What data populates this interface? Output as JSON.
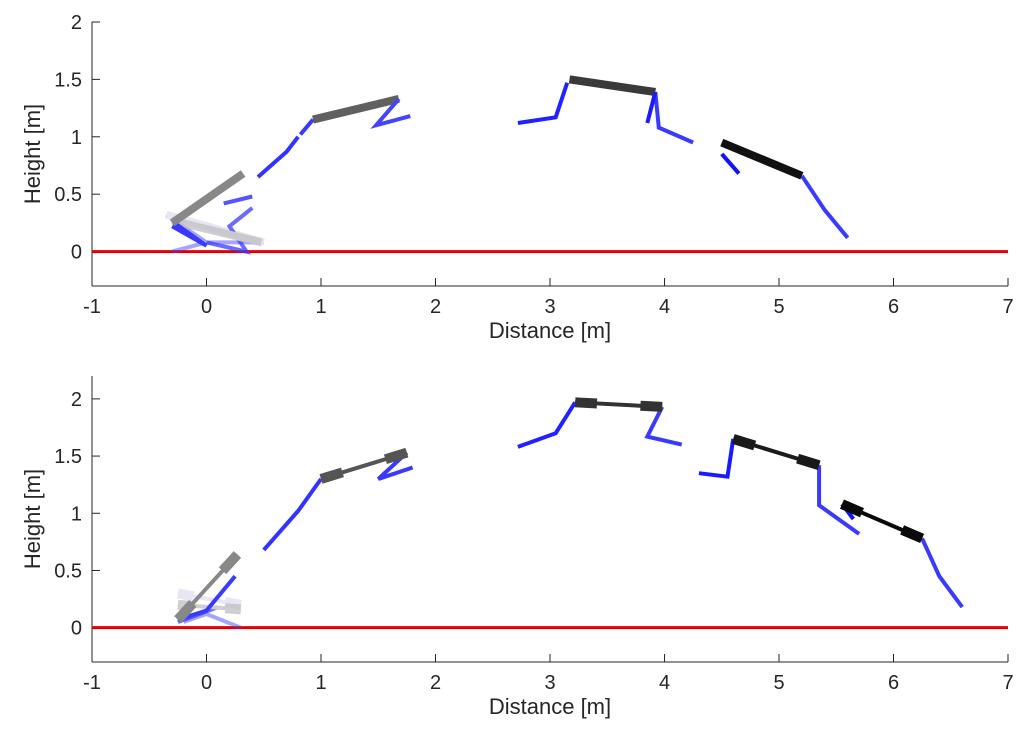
{
  "chart_data": [
    {
      "type": "line",
      "title": "",
      "xlabel": "Distance [m]",
      "ylabel": "Height [m]",
      "xlim": [
        -1,
        7
      ],
      "ylim": [
        -0.3,
        2
      ],
      "xticks": [
        "-1",
        "0",
        "1",
        "2",
        "3",
        "4",
        "5",
        "6",
        "7"
      ],
      "yticks": [
        "0",
        "0.5",
        "1",
        "1.5",
        "2"
      ],
      "ground": {
        "y": 0,
        "color": "#e00000"
      },
      "grid": false,
      "legend": "none",
      "frames": [
        {
          "tone": "#c8c8e8",
          "opacity": 0.45,
          "trunk": [
            [
              -0.35,
              0.32
            ],
            [
              0.5,
              0.08
            ]
          ],
          "legs": [
            [
              -0.35,
              0.32
            ],
            [
              0.0,
              0.08
            ],
            [
              -0.3,
              0.0
            ],
            [
              0.0,
              0.08
            ],
            [
              0.5,
              0.08
            ]
          ]
        },
        {
          "tone": "#c0c0c0",
          "opacity": 0.75,
          "trunk": [
            [
              -0.3,
              0.27
            ],
            [
              0.48,
              0.08
            ]
          ],
          "legs": [
            [
              0.0,
              0.08
            ],
            [
              0.35,
              0.0
            ],
            [
              0.2,
              0.22
            ],
            [
              0.4,
              0.38
            ]
          ]
        },
        {
          "tone": "#888888",
          "opacity": 1,
          "trunk": [
            [
              -0.3,
              0.25
            ],
            [
              0.32,
              0.68
            ]
          ],
          "legs": [
            [
              -0.28,
              0.25
            ],
            [
              0.0,
              0.05
            ],
            [
              -0.3,
              0.22
            ],
            [
              0.0,
              0.05
            ]
          ]
        },
        {
          "tone": "#5555ff",
          "opacity": 1,
          "trunk": [],
          "legs": [
            [
              0.15,
              0.42
            ],
            [
              0.4,
              0.48
            ]
          ]
        },
        {
          "tone": "#3333ff",
          "opacity": 1,
          "trunk": [],
          "legs": [
            [
              0.45,
              0.65
            ],
            [
              0.7,
              0.87
            ],
            [
              0.8,
              1.0
            ]
          ]
        },
        {
          "tone": "#606060",
          "opacity": 1,
          "trunk": [
            [
              0.93,
              1.15
            ],
            [
              1.68,
              1.33
            ]
          ],
          "legs": [
            [
              0.82,
              1.02
            ],
            [
              0.93,
              1.15
            ]
          ]
        },
        {
          "tone": "#4444ff",
          "opacity": 1,
          "trunk": [],
          "legs": [
            [
              1.68,
              1.33
            ],
            [
              1.48,
              1.1
            ],
            [
              1.78,
              1.18
            ]
          ]
        },
        {
          "tone": "#2222ff",
          "opacity": 1,
          "trunk": [],
          "legs": [
            [
              2.72,
              1.12
            ],
            [
              3.05,
              1.17
            ],
            [
              3.15,
              1.47
            ]
          ]
        },
        {
          "tone": "#3a3a3a",
          "opacity": 1,
          "trunk": [
            [
              3.17,
              1.5
            ],
            [
              3.92,
              1.39
            ]
          ],
          "legs": [
            [
              3.92,
              1.39
            ],
            [
              3.95,
              1.08
            ],
            [
              4.25,
              0.95
            ]
          ]
        },
        {
          "tone": "#1a1aff",
          "opacity": 1,
          "trunk": [],
          "legs": [
            [
              3.92,
              1.39
            ],
            [
              3.85,
              1.12
            ]
          ]
        },
        {
          "tone": "#1212ff",
          "opacity": 1,
          "trunk": [],
          "legs": [
            [
              4.5,
              0.85
            ],
            [
              4.65,
              0.68
            ]
          ]
        },
        {
          "tone": "#111111",
          "opacity": 1,
          "trunk": [
            [
              4.5,
              0.95
            ],
            [
              5.2,
              0.66
            ]
          ],
          "legs": [
            [
              5.2,
              0.66
            ],
            [
              5.4,
              0.36
            ],
            [
              5.6,
              0.12
            ]
          ]
        }
      ]
    },
    {
      "type": "line",
      "title": "",
      "xlabel": "Distance [m]",
      "ylabel": "Height [m]",
      "xlim": [
        -1,
        7
      ],
      "ylim": [
        -0.3,
        2.2
      ],
      "xticks": [
        "-1",
        "0",
        "1",
        "2",
        "3",
        "4",
        "5",
        "6",
        "7"
      ],
      "yticks": [
        "0",
        "0.5",
        "1",
        "1.5",
        "2"
      ],
      "ground": {
        "y": 0,
        "color": "#e00000"
      },
      "grid": false,
      "legend": "none",
      "frames": [
        {
          "tone": "#c8c8e8",
          "opacity": 0.45,
          "trunk": [
            [
              -0.25,
              0.3
            ],
            [
              0.3,
              0.2
            ]
          ],
          "legs": [
            [
              -0.2,
              0.05
            ],
            [
              0.0,
              0.12
            ],
            [
              0.3,
              0.0
            ]
          ]
        },
        {
          "tone": "#c0c0c0",
          "opacity": 0.75,
          "trunk": [
            [
              -0.25,
              0.2
            ],
            [
              0.3,
              0.16
            ]
          ],
          "legs": [
            [
              -0.25,
              0.05
            ],
            [
              0.1,
              0.18
            ]
          ]
        },
        {
          "tone": "#888888",
          "opacity": 1,
          "trunk": [
            [
              -0.25,
              0.07
            ],
            [
              0.27,
              0.64
            ]
          ],
          "legs": [
            [
              -0.25,
              0.07
            ],
            [
              0.0,
              0.15
            ],
            [
              0.25,
              0.45
            ]
          ]
        },
        {
          "tone": "#3333ff",
          "opacity": 1,
          "trunk": [],
          "legs": [
            [
              0.5,
              0.68
            ],
            [
              0.8,
              1.02
            ],
            [
              1.0,
              1.3
            ]
          ]
        },
        {
          "tone": "#555555",
          "opacity": 1,
          "trunk": [
            [
              1.0,
              1.3
            ],
            [
              1.75,
              1.53
            ]
          ],
          "legs": [
            [
              1.75,
              1.53
            ],
            [
              1.5,
              1.3
            ],
            [
              1.8,
              1.4
            ]
          ]
        },
        {
          "tone": "#2222ff",
          "opacity": 1,
          "trunk": [],
          "legs": [
            [
              2.72,
              1.58
            ],
            [
              3.05,
              1.7
            ],
            [
              3.22,
              1.97
            ]
          ]
        },
        {
          "tone": "#333333",
          "opacity": 1,
          "trunk": [
            [
              3.22,
              1.97
            ],
            [
              3.98,
              1.93
            ]
          ],
          "legs": [
            [
              3.98,
              1.93
            ],
            [
              3.85,
              1.67
            ],
            [
              4.15,
              1.6
            ]
          ]
        },
        {
          "tone": "#1a1aff",
          "opacity": 1,
          "trunk": [],
          "legs": [
            [
              4.6,
              1.65
            ],
            [
              4.55,
              1.32
            ],
            [
              4.3,
              1.35
            ]
          ]
        },
        {
          "tone": "#1a1a1a",
          "opacity": 1,
          "trunk": [
            [
              4.6,
              1.65
            ],
            [
              5.35,
              1.42
            ]
          ],
          "legs": [
            [
              5.35,
              1.42
            ],
            [
              5.35,
              1.07
            ],
            [
              5.7,
              0.82
            ]
          ]
        },
        {
          "tone": "#1212ff",
          "opacity": 1,
          "trunk": [],
          "legs": [
            [
              5.55,
              1.08
            ],
            [
              5.65,
              0.95
            ]
          ]
        },
        {
          "tone": "#0a0a0a",
          "opacity": 1,
          "trunk": [
            [
              5.55,
              1.08
            ],
            [
              6.25,
              0.78
            ]
          ],
          "legs": [
            [
              6.25,
              0.78
            ],
            [
              6.4,
              0.45
            ],
            [
              6.6,
              0.18
            ]
          ]
        }
      ]
    }
  ]
}
